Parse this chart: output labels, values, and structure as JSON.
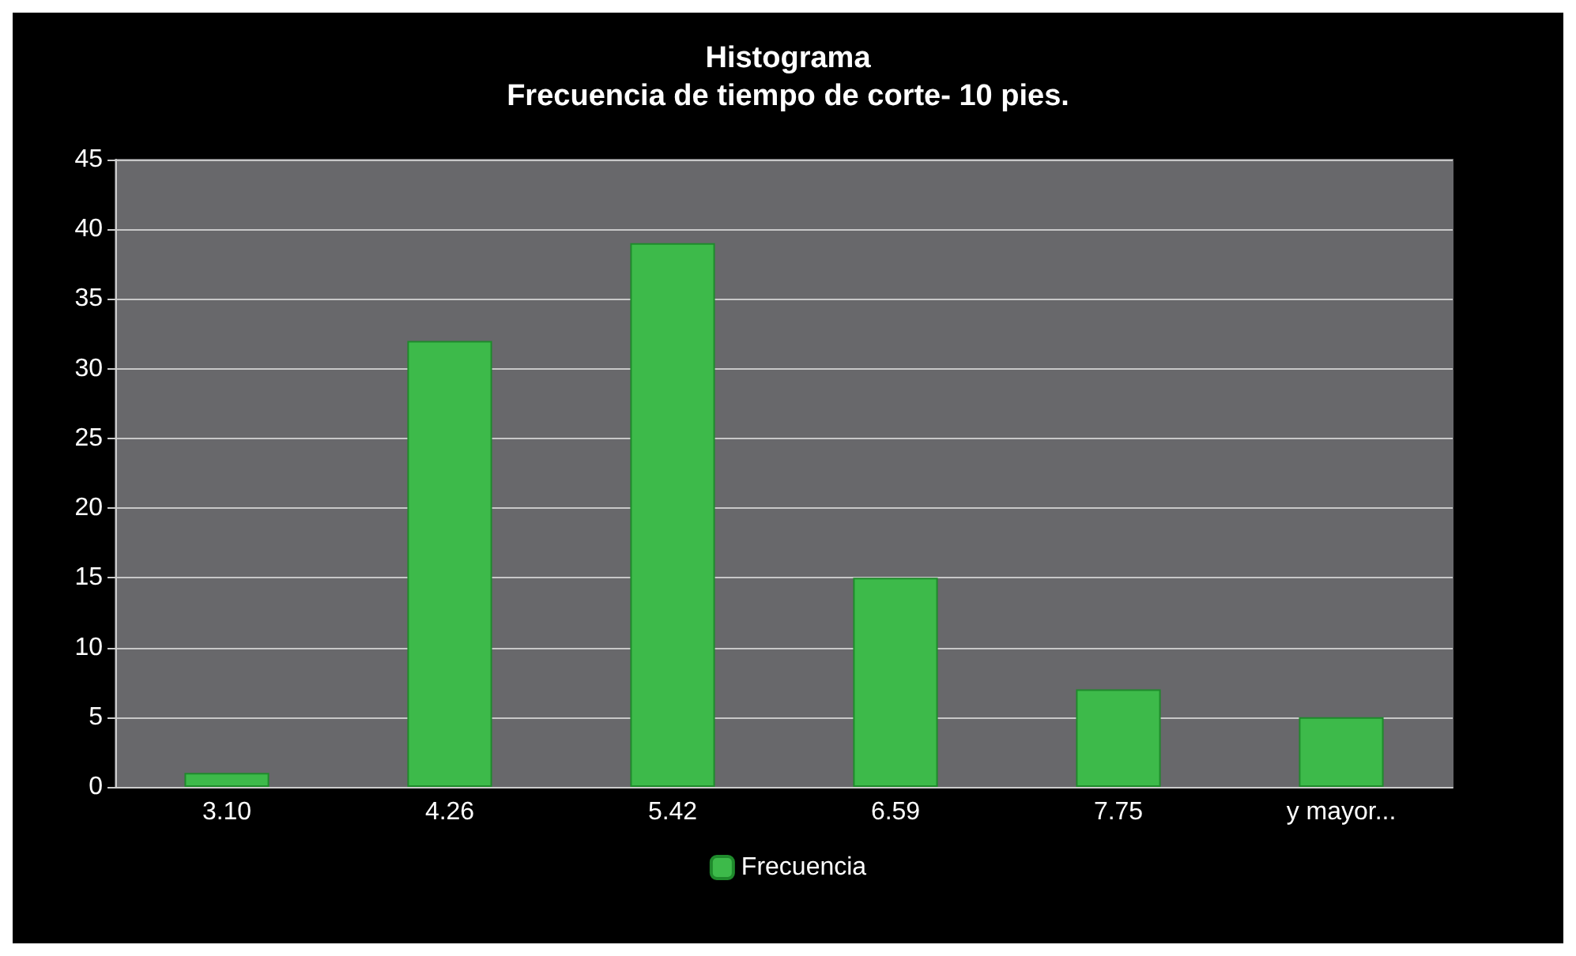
{
  "chart_data": {
    "type": "bar",
    "title": "Histograma\nFrecuencia de tiempo de corte- 10 pies.",
    "categories": [
      "3.10",
      "4.26",
      "5.42",
      "6.59",
      "7.75",
      "y mayor..."
    ],
    "series": [
      {
        "name": "Frecuencia",
        "color": "#3dba4a",
        "values": [
          1,
          32,
          39,
          15,
          7,
          5
        ]
      }
    ],
    "ylim": [
      0,
      45
    ],
    "yticks": [
      0,
      5,
      10,
      15,
      20,
      25,
      30,
      35,
      40,
      45
    ],
    "grid": "y",
    "legend": "bottom"
  }
}
